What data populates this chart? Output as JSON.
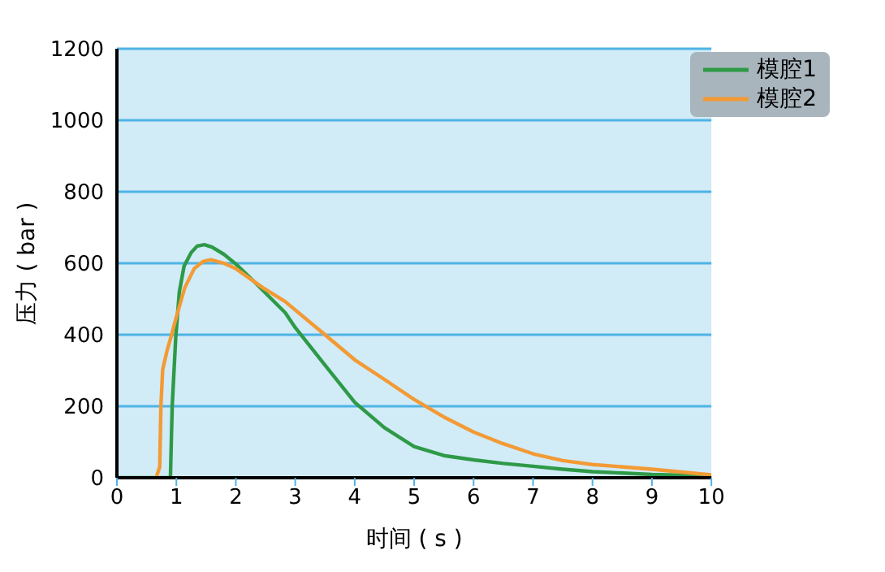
{
  "chart_data": {
    "type": "line",
    "xlabel": "时间 ( s )",
    "ylabel": "压力 ( bar )",
    "xlim": [
      0,
      10
    ],
    "xticks": [
      0,
      1,
      2,
      3,
      4,
      5,
      6,
      7,
      8,
      9,
      10
    ],
    "ylim": [
      0,
      1200
    ],
    "yticks": [
      0,
      200,
      400,
      600,
      800,
      1000,
      1200
    ],
    "grid": "y",
    "legend": "top right",
    "marker": "none",
    "line_style": "solid",
    "series": [
      {
        "name": "模腔1",
        "color": "#2e9a47",
        "x": [
          0,
          0.9,
          0.93,
          0.99,
          1.05,
          1.13,
          1.25,
          1.35,
          1.47,
          1.6,
          1.8,
          2,
          2.3,
          2.6,
          2.83,
          3,
          3.5,
          4,
          4.5,
          5,
          5.5,
          6,
          6.5,
          7,
          7.5,
          8,
          9,
          10
        ],
        "values": [
          0,
          0,
          200,
          394,
          520,
          592,
          630,
          648,
          652,
          645,
          625,
          598,
          550,
          500,
          462,
          420,
          315,
          211,
          140,
          87,
          62,
          50,
          40,
          32,
          24,
          17,
          9,
          5
        ]
      },
      {
        "name": "模腔2",
        "color": "#f39a34",
        "x": [
          0.66,
          0.72,
          0.74,
          0.77,
          0.85,
          0.91,
          1,
          1.14,
          1.3,
          1.45,
          1.58,
          1.8,
          2,
          2.46,
          2.83,
          3.5,
          4,
          4.5,
          5,
          5.5,
          6,
          6.5,
          7,
          7.5,
          8,
          9,
          10
        ],
        "values": [
          0,
          30,
          200,
          303,
          360,
          394,
          450,
          531,
          585,
          605,
          610,
          600,
          585,
          531,
          493,
          400,
          330,
          275,
          219,
          170,
          128,
          95,
          67,
          48,
          37,
          24,
          8
        ]
      }
    ]
  }
}
